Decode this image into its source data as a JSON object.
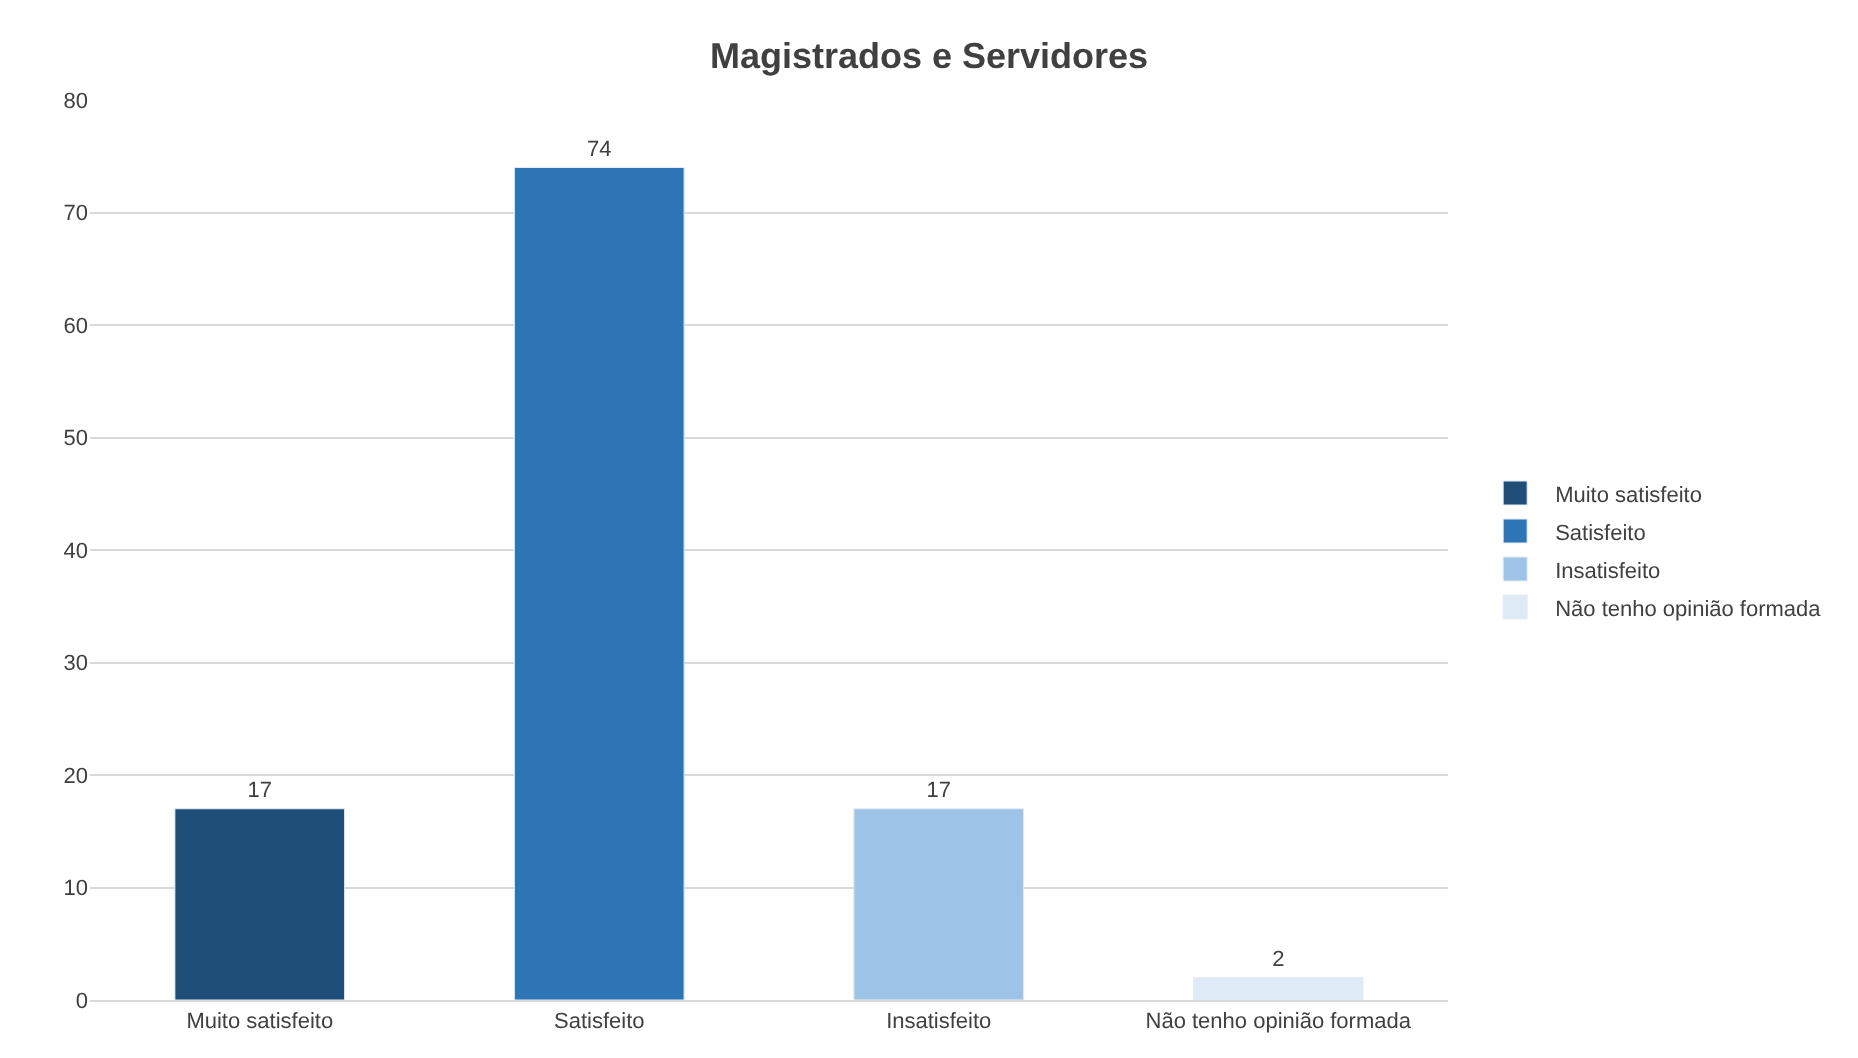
{
  "chart_data": {
    "type": "bar",
    "title": "Magistrados e Servidores",
    "categories": [
      "Muito satisfeito",
      "Satisfeito",
      "Insatisfeito",
      "Não tenho opinião formada"
    ],
    "series": [
      {
        "name": "Muito satisfeito",
        "color": "#1f4e79",
        "values": [
          17,
          null,
          null,
          null
        ]
      },
      {
        "name": "Satisfeito",
        "color": "#2e75b6",
        "values": [
          null,
          74,
          null,
          null
        ]
      },
      {
        "name": "Insatisfeito",
        "color": "#9dc3e6",
        "values": [
          null,
          null,
          17,
          null
        ]
      },
      {
        "name": "Não tenho opinião formada",
        "color": "#deebf7",
        "values": [
          null,
          null,
          null,
          2
        ]
      }
    ],
    "ylim": [
      0,
      80
    ],
    "yticks": [
      0,
      10,
      20,
      30,
      40,
      50,
      60,
      70,
      80
    ],
    "grid": "y",
    "legend": "right",
    "data_labels": true
  }
}
